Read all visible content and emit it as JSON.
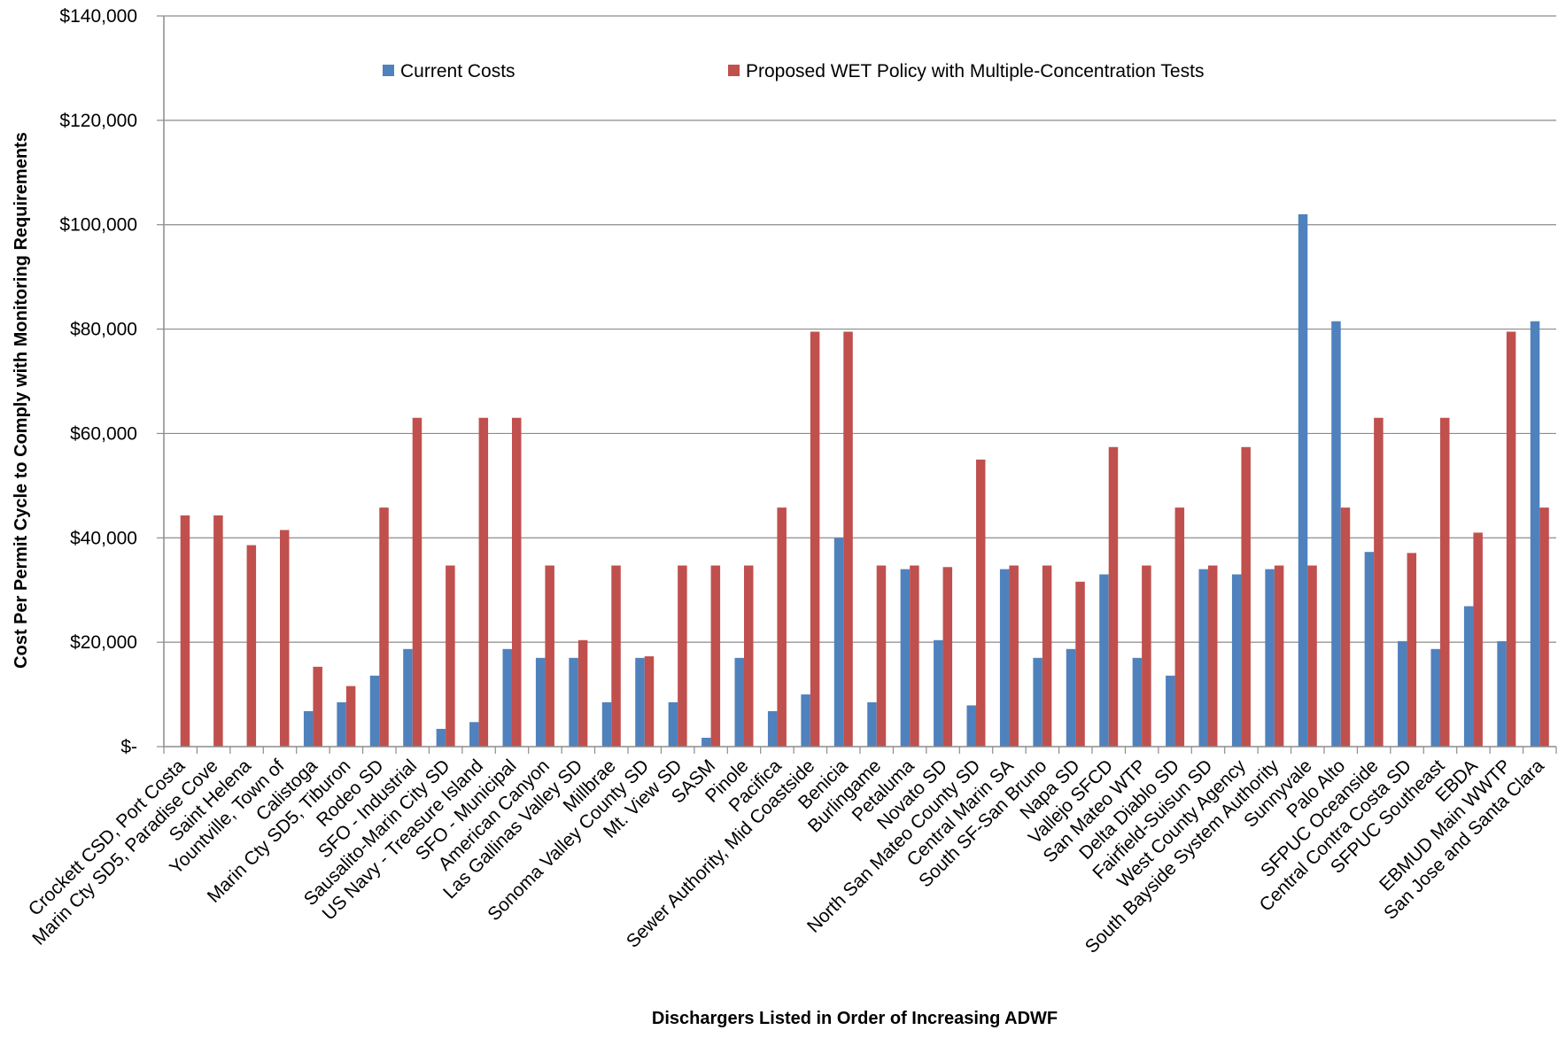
{
  "chart_data": {
    "type": "bar",
    "title": "",
    "xlabel": "Dischargers Listed in Order of Increasing ADWF",
    "ylabel": "Cost Per Permit Cycle to Comply with Monitoring Requirements",
    "ylim": [
      0,
      140000
    ],
    "yticks": [
      "$-",
      "$20,000",
      "$40,000",
      "$60,000",
      "$80,000",
      "$100,000",
      "$120,000",
      "$140,000"
    ],
    "grid": true,
    "legend_position": "top",
    "categories": [
      "Crockett CSD, Port Costa",
      "Marin Cty SD5, Paradise Cove",
      "Saint Helena",
      "Yountville, Town of",
      "Calistoga",
      "Marin Cty SD5, Tiburon",
      "Rodeo SD",
      "SFO - Industrial",
      "Sausalito-Marin City SD",
      "US Navy - Treasure Island",
      "SFO - Municipal",
      "American Canyon",
      "Las Gallinas Valley SD",
      "Millbrae",
      "Sonoma Valley County SD",
      "Mt. View SD",
      "SASM",
      "Pinole",
      "Pacifica",
      "Sewer Authority, Mid Coastside",
      "Benicia",
      "Burlingame",
      "Petaluma",
      "Novato SD",
      "North San Mateo County SD",
      "Central Marin SA",
      "South SF-San Bruno",
      "Napa SD",
      "Vallejo SFCD",
      "San Mateo WTP",
      "Delta Diablo SD",
      "Fairfield-Suisun SD",
      "West County Agency",
      "South Bayside System Authority",
      "Sunnyvale",
      "Palo Alto",
      "SFPUC Oceanside",
      "Central Contra Costa SD",
      "SFPUC Southeast",
      "EBDA",
      "EBMUD Main WWTP",
      "San Jose and Santa Clara"
    ],
    "series": [
      {
        "name": "Current Costs",
        "color": "#4F81BD",
        "values": [
          0,
          0,
          0,
          0,
          6800,
          8500,
          13600,
          18700,
          3400,
          4700,
          18700,
          17000,
          17000,
          8500,
          17000,
          8500,
          1700,
          17000,
          6800,
          10000,
          40000,
          8500,
          34000,
          20400,
          7900,
          34000,
          17000,
          18700,
          33000,
          17000,
          13600,
          34000,
          33000,
          34000,
          102000,
          81500,
          37300,
          20200,
          18700,
          26900,
          20200,
          81500
        ]
      },
      {
        "name": "Proposed WET Policy with Multiple-Concentration Tests",
        "color": "#C0504D",
        "values": [
          44300,
          44300,
          38600,
          41500,
          15300,
          11600,
          45800,
          63000,
          34700,
          63000,
          63000,
          34700,
          20400,
          34700,
          17300,
          34700,
          34700,
          34700,
          45800,
          79500,
          79500,
          34700,
          34700,
          34400,
          55000,
          34700,
          34700,
          31600,
          57400,
          34700,
          45800,
          34700,
          57400,
          34700,
          34700,
          45800,
          63000,
          37100,
          63000,
          41000,
          79500,
          45800
        ]
      }
    ]
  }
}
